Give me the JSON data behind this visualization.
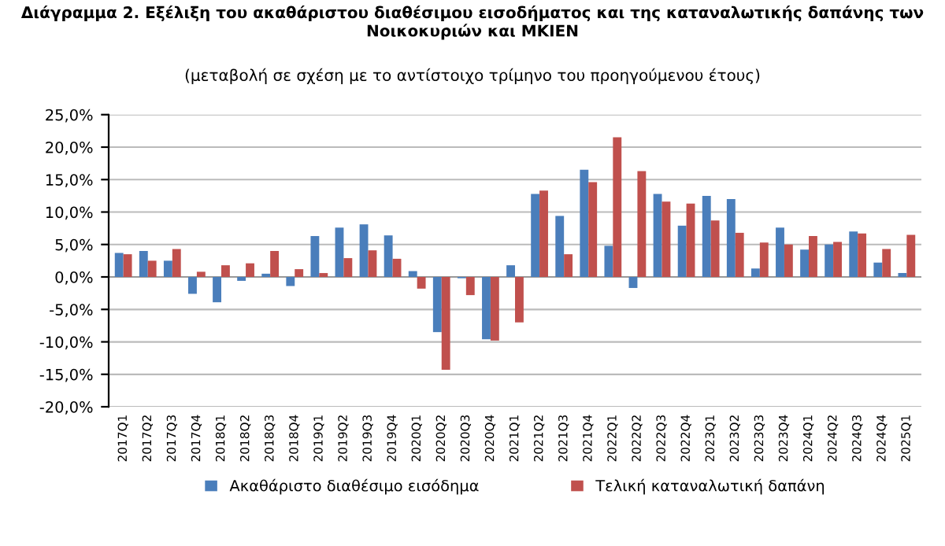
{
  "chart_data": {
    "type": "bar",
    "title": "Διάγραμμα 2. Εξέλιξη του ακαθάριστου διαθέσιμου εισοδήματος και της καταναλωτικής δαπάνης των\nΝοικοκυριών και ΜΚΙΕΝ",
    "subtitle": "(μεταβολή σε σχέση με το αντίστοιχο τρίμηνο του προηγούμενου έτους)",
    "categories": [
      "2017Q1",
      "2017Q2",
      "2017Q3",
      "2017Q4",
      "2018Q1",
      "2018Q2",
      "2018Q3",
      "2018Q4",
      "2019Q1",
      "2019Q2",
      "2019Q3",
      "2019Q4",
      "2020Q1",
      "2020Q2",
      "2020Q3",
      "2020Q4",
      "2021Q1",
      "2021Q2",
      "2021Q3",
      "2021Q4",
      "2022Q1",
      "2022Q2",
      "2022Q3",
      "2022Q4",
      "2023Q1",
      "2023Q2",
      "2023Q3",
      "2023Q4",
      "2024Q1",
      "2024Q2",
      "2024Q3",
      "2024Q4",
      "2025Q1"
    ],
    "series": [
      {
        "name": "Ακαθάριστο διαθέσιμο εισόδημα",
        "color": "#4a7ebb",
        "values": [
          3.7,
          4.0,
          2.5,
          -2.6,
          -3.9,
          -0.6,
          0.5,
          -1.4,
          6.3,
          7.6,
          8.1,
          6.4,
          0.9,
          -8.5,
          -0.2,
          -9.6,
          1.8,
          12.8,
          9.4,
          16.5,
          4.8,
          -1.7,
          12.8,
          7.9,
          12.5,
          12.0,
          1.3,
          7.6,
          4.2,
          5.0,
          7.0,
          2.2,
          0.6
        ]
      },
      {
        "name": "Τελική καταναλωτική δαπάνη",
        "color": "#c0504d",
        "values": [
          3.5,
          2.5,
          4.3,
          0.8,
          1.8,
          2.1,
          4.0,
          1.2,
          0.6,
          2.9,
          4.1,
          2.8,
          -1.8,
          -14.3,
          -2.8,
          -9.8,
          -7.0,
          13.3,
          3.5,
          14.6,
          21.5,
          16.3,
          11.6,
          11.3,
          8.7,
          6.8,
          5.3,
          5.0,
          6.3,
          5.4,
          6.7,
          4.3,
          6.5
        ]
      }
    ],
    "ylim": [
      -20,
      25
    ],
    "yticks": [
      {
        "value": -20,
        "label": "-20,0%"
      },
      {
        "value": -15,
        "label": "-15,0%"
      },
      {
        "value": -10,
        "label": "-10,0%"
      },
      {
        "value": -5,
        "label": "-5,0%"
      },
      {
        "value": 0,
        "label": "0,0%"
      },
      {
        "value": 5,
        "label": "5,0%"
      },
      {
        "value": 10,
        "label": "10,0%"
      },
      {
        "value": 15,
        "label": "15,0%"
      },
      {
        "value": 20,
        "label": "20,0%"
      },
      {
        "value": 25,
        "label": "25,0%"
      }
    ],
    "grid": "y",
    "legend": "bottom"
  }
}
